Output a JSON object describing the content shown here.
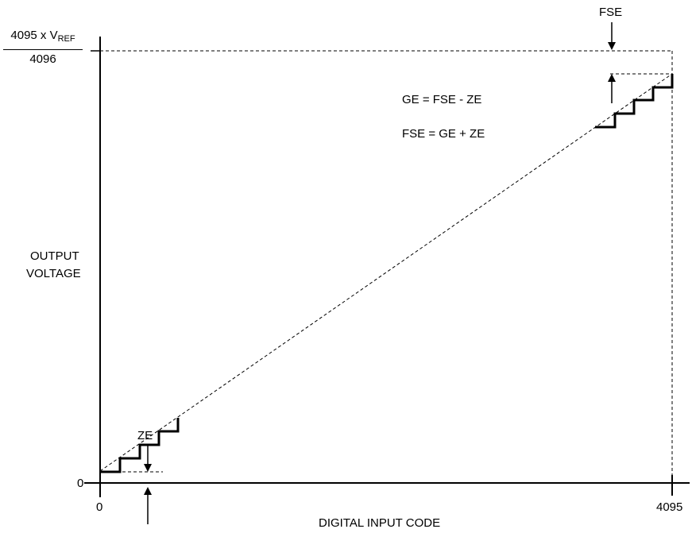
{
  "y_axis": {
    "top_label": {
      "numerator_main": "4095 x V",
      "numerator_sub": "REF",
      "denominator": "4096"
    },
    "zero_label": "0",
    "title_line1": "OUTPUT",
    "title_line2": "VOLTAGE"
  },
  "x_axis": {
    "start_label": "0",
    "end_label": "4095",
    "title": "DIGITAL INPUT CODE"
  },
  "annotations": {
    "fse": "FSE",
    "ze": "ZE",
    "equation1": "GE = FSE - ZE",
    "equation2": "FSE = GE + ZE"
  }
}
